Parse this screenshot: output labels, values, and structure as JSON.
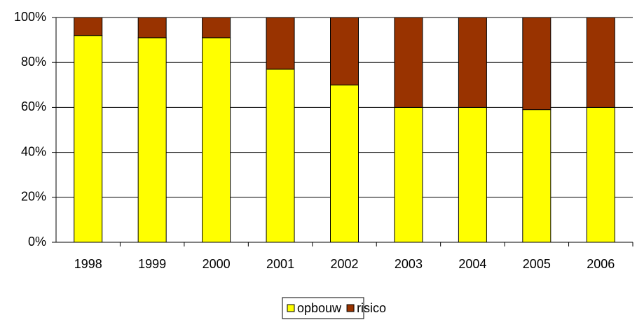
{
  "chart_data": {
    "type": "stacked_bar",
    "categories": [
      "1998",
      "1999",
      "2000",
      "2001",
      "2002",
      "2003",
      "2004",
      "2005",
      "2006"
    ],
    "series": [
      {
        "name": "opbouw",
        "color": "#ffff00",
        "values": [
          92,
          91,
          91,
          77,
          70,
          60,
          60,
          59,
          60
        ]
      },
      {
        "name": "risico",
        "color": "#993300",
        "values": [
          8,
          9,
          9,
          23,
          30,
          40,
          40,
          41,
          40
        ]
      }
    ],
    "ylim": [
      0,
      100
    ],
    "yticks": [
      {
        "value": 0,
        "label": "0%"
      },
      {
        "value": 20,
        "label": "20%"
      },
      {
        "value": 40,
        "label": "40%"
      },
      {
        "value": 60,
        "label": "60%"
      },
      {
        "value": 80,
        "label": "80%"
      },
      {
        "value": 100,
        "label": "100%"
      }
    ],
    "grid": true,
    "legend": "bottom"
  }
}
